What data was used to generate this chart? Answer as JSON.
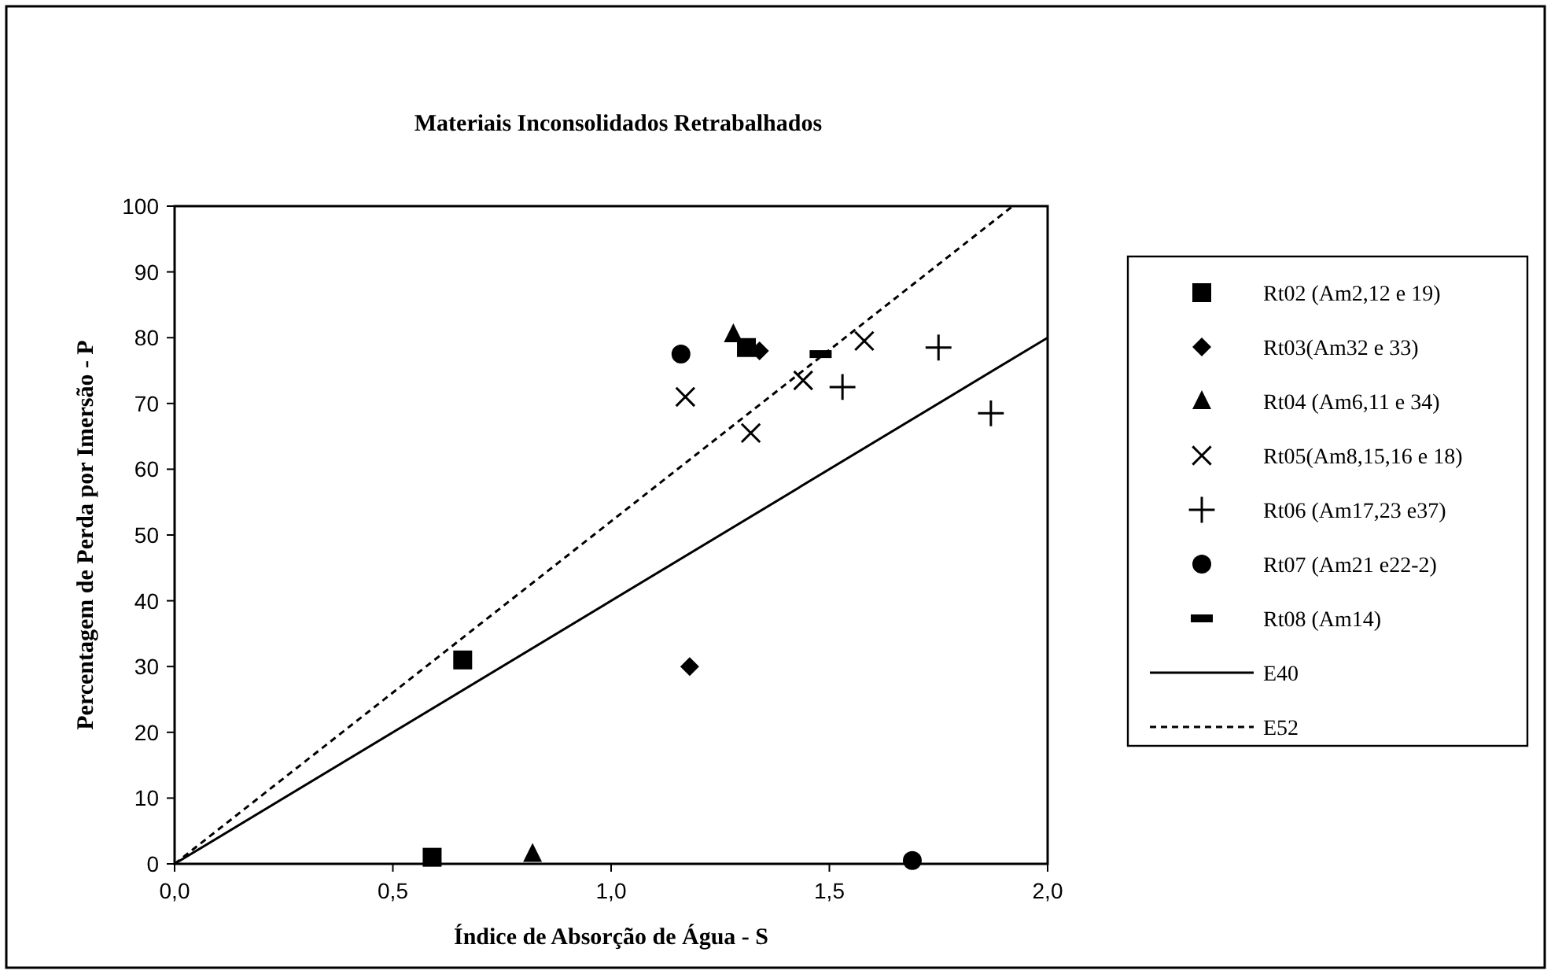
{
  "chart_data": {
    "type": "scatter",
    "title": "Materiais Inconsolidados Retrabalhados",
    "xlabel": "Índice de Absorção de Água - S",
    "ylabel": "Percentagem de Perda por Imersão - P",
    "xlim": [
      0,
      2
    ],
    "xticks": [
      {
        "value": 0,
        "label": "0,0"
      },
      {
        "value": 0.5,
        "label": "0,5"
      },
      {
        "value": 1,
        "label": "1,0"
      },
      {
        "value": 1.5,
        "label": "1,5"
      },
      {
        "value": 2,
        "label": "2,0"
      }
    ],
    "ylim": [
      0,
      100
    ],
    "yticks": [
      0,
      10,
      20,
      30,
      40,
      50,
      60,
      70,
      80,
      90,
      100
    ],
    "grid": false,
    "legend": "right",
    "series": [
      {
        "name": "Rt02 (Am2,12 e 19)",
        "color": "#000000",
        "marker": "square",
        "x": [
          0.59,
          0.66,
          1.31
        ],
        "values": [
          1,
          31,
          78.5
        ]
      },
      {
        "name": "Rt03(Am32 e 33)",
        "color": "#000000",
        "marker": "diamond",
        "x": [
          1.18,
          1.34
        ],
        "values": [
          30,
          78
        ]
      },
      {
        "name": "Rt04 (Am6,11 e 34)",
        "color": "#000000",
        "marker": "triangle",
        "x": [
          0.82,
          1.28
        ],
        "values": [
          1.5,
          80.5
        ]
      },
      {
        "name": "Rt05(Am8,15,16 e 18)",
        "color": "#000000",
        "marker": "cross",
        "x": [
          1.17,
          1.32,
          1.44,
          1.58
        ],
        "values": [
          71,
          65.5,
          73.5,
          79.5
        ]
      },
      {
        "name": "Rt06 (Am17,23 e37)",
        "color": "#000000",
        "marker": "plus",
        "x": [
          1.53,
          1.75,
          1.87
        ],
        "values": [
          72.5,
          78.5,
          68.5
        ]
      },
      {
        "name": "Rt07 (Am21 e22-2)",
        "color": "#000000",
        "marker": "circle",
        "x": [
          1.16,
          1.69
        ],
        "values": [
          77.5,
          0.5
        ]
      },
      {
        "name": "Rt08 (Am14)",
        "color": "#000000",
        "x": [
          1.48
        ],
        "values": [
          77.5
        ]
      },
      {
        "name": "E40",
        "type": "line",
        "color": "#000000",
        "line_style": "solid",
        "x": [
          0,
          2
        ],
        "values": [
          0,
          80
        ]
      },
      {
        "name": "E52",
        "type": "line",
        "color": "#000000",
        "line_style": "dashed",
        "x": [
          0,
          1.92
        ],
        "values": [
          0,
          100
        ]
      }
    ]
  }
}
